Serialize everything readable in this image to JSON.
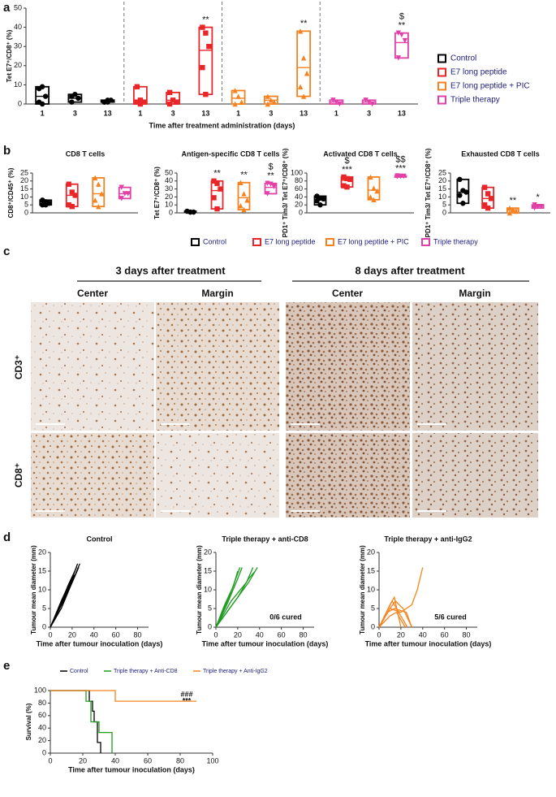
{
  "panel_labels": [
    "a",
    "b",
    "c",
    "d",
    "e"
  ],
  "legend_b": [
    {
      "name": "Control",
      "color": "#000000"
    },
    {
      "name": "E7 long peptide",
      "color": "#e8262a"
    },
    {
      "name": "E7 long peptide + PIC",
      "color": "#f58220"
    },
    {
      "name": "Triple therapy",
      "color": "#e040a8"
    }
  ],
  "histology": {
    "headers": [
      "3 days after treatment",
      "8 days after treatment"
    ],
    "columns": [
      "Center",
      "Margin",
      "Center",
      "Margin"
    ],
    "rows": [
      "CD3⁺",
      "CD8⁺"
    ]
  },
  "chart_data": [
    {
      "type": "box",
      "ylabel": "Tet E7⁺/CD8⁺ (%)",
      "xlabel": "Time after treatment administration (days)",
      "ylim": [
        0,
        50
      ],
      "yticks": [
        0,
        10,
        20,
        30,
        40,
        50
      ],
      "separators": true,
      "legend": "right",
      "series": [
        {
          "name": "Control",
          "color": "#000000",
          "marker": "circle",
          "categories": [
            "1",
            "3",
            "13"
          ],
          "boxes": [
            {
              "low": 0,
              "median": 4,
              "high": 9,
              "points": [
                8,
                9,
                4,
                1,
                0
              ]
            },
            {
              "low": 1,
              "median": 3,
              "high": 5,
              "points": [
                4,
                5,
                3,
                1
              ]
            },
            {
              "low": 1,
              "median": 1.5,
              "high": 2,
              "points": [
                1,
                2,
                2,
                1,
                1
              ]
            }
          ]
        },
        {
          "name": "E7 long peptide",
          "color": "#e8262a",
          "marker": "square",
          "categories": [
            "1",
            "3",
            "13"
          ],
          "boxes": [
            {
              "low": 0,
              "median": 2,
              "high": 9,
              "points": [
                9,
                2,
                1,
                1,
                0
              ]
            },
            {
              "low": 0,
              "median": 2,
              "high": 6,
              "points": [
                6,
                2,
                1,
                0
              ]
            },
            {
              "low": 5,
              "median": 28,
              "high": 40,
              "points": [
                40,
                37,
                30,
                19,
                5
              ],
              "labels": [
                "**"
              ]
            }
          ]
        },
        {
          "name": "E7 long peptide + PIC",
          "color": "#f58220",
          "marker": "triangle",
          "categories": [
            "1",
            "3",
            "13"
          ],
          "boxes": [
            {
              "low": 0,
              "median": 3,
              "high": 7,
              "points": [
                7,
                4,
                1,
                0
              ]
            },
            {
              "low": 0,
              "median": 2,
              "high": 4,
              "points": [
                4,
                2,
                1,
                0
              ]
            },
            {
              "low": 4,
              "median": 19,
              "high": 38,
              "points": [
                38,
                24,
                16,
                9,
                4
              ],
              "labels": [
                "**"
              ]
            }
          ]
        },
        {
          "name": "Triple therapy",
          "color": "#e040a8",
          "marker": "triangle-down",
          "categories": [
            "1",
            "3",
            "13"
          ],
          "boxes": [
            {
              "low": 0,
              "median": 1,
              "high": 2,
              "points": [
                2,
                1,
                0
              ]
            },
            {
              "low": 0,
              "median": 1,
              "high": 2,
              "points": [
                2,
                1,
                0
              ]
            },
            {
              "low": 24,
              "median": 32,
              "high": 37,
              "points": [
                37,
                36,
                33,
                24
              ],
              "labels": [
                "$",
                "**"
              ]
            }
          ]
        }
      ]
    },
    {
      "type": "box",
      "title": "CD8 T cells",
      "ylabel": "CD8⁺/CD45⁺ (%)",
      "ylim": [
        0,
        25
      ],
      "yticks": [
        0,
        5,
        10,
        15,
        20,
        25
      ],
      "series": [
        {
          "color": "#000000",
          "marker": "circle",
          "boxes": [
            {
              "low": 5,
              "median": 7,
              "high": 8,
              "points": [
                8,
                7,
                6,
                5,
                5
              ]
            }
          ]
        },
        {
          "color": "#e8262a",
          "marker": "square",
          "boxes": [
            {
              "low": 4,
              "median": 11,
              "high": 18,
              "points": [
                18,
                13,
                11,
                5,
                4
              ]
            }
          ]
        },
        {
          "color": "#f58220",
          "marker": "triangle",
          "boxes": [
            {
              "low": 4,
              "median": 12,
              "high": 22,
              "points": [
                22,
                18,
                12,
                8,
                4
              ]
            }
          ]
        },
        {
          "color": "#e040a8",
          "marker": "triangle-down",
          "boxes": [
            {
              "low": 9,
              "median": 12,
              "high": 16,
              "points": [
                16,
                12,
                12,
                9
              ]
            }
          ]
        }
      ]
    },
    {
      "type": "box",
      "title": "Antigen-specific CD8 T cells",
      "ylabel": "Tet E7⁺/CD8⁺ (%)",
      "ylim": [
        0,
        50
      ],
      "yticks": [
        0,
        10,
        20,
        30,
        40,
        50
      ],
      "series": [
        {
          "color": "#000000",
          "marker": "circle",
          "boxes": [
            {
              "low": 1,
              "median": 1.5,
              "high": 2,
              "points": [
                2,
                1,
                1,
                2,
                1
              ]
            }
          ]
        },
        {
          "color": "#e8262a",
          "marker": "square",
          "boxes": [
            {
              "low": 5,
              "median": 28,
              "high": 40,
              "points": [
                40,
                37,
                30,
                19,
                5
              ],
              "labels": [
                "**"
              ]
            }
          ]
        },
        {
          "color": "#f58220",
          "marker": "triangle",
          "boxes": [
            {
              "low": 4,
              "median": 19,
              "high": 38,
              "points": [
                38,
                24,
                16,
                9,
                4
              ],
              "labels": [
                "**"
              ]
            }
          ]
        },
        {
          "color": "#e040a8",
          "marker": "triangle-down",
          "boxes": [
            {
              "low": 24,
              "median": 32,
              "high": 37,
              "points": [
                37,
                36,
                33,
                24
              ],
              "labels": [
                "$",
                "**"
              ]
            }
          ]
        }
      ]
    },
    {
      "type": "box",
      "title": "Activated CD8 T cells",
      "ylabel": "PD1⁺ Tim3/ Tet E7⁺/CD8⁺ (%)",
      "ylim": [
        0,
        100
      ],
      "yticks": [
        0,
        20,
        40,
        60,
        80,
        100
      ],
      "series": [
        {
          "color": "#000000",
          "marker": "circle",
          "boxes": [
            {
              "low": 20,
              "median": 33,
              "high": 42,
              "points": [
                42,
                37,
                35,
                30,
                20
              ]
            }
          ]
        },
        {
          "color": "#e8262a",
          "marker": "square",
          "boxes": [
            {
              "low": 65,
              "median": 82,
              "high": 90,
              "points": [
                90,
                86,
                84,
                68,
                65
              ],
              "labels": [
                "$",
                "***"
              ]
            }
          ]
        },
        {
          "color": "#f58220",
          "marker": "triangle",
          "boxes": [
            {
              "low": 33,
              "median": 57,
              "high": 90,
              "points": [
                90,
                62,
                55,
                40,
                33
              ]
            }
          ]
        },
        {
          "color": "#e040a8",
          "marker": "triangle-down",
          "boxes": [
            {
              "low": 90,
              "median": 92,
              "high": 93,
              "points": [
                93,
                92,
                92,
                91
              ],
              "labels": [
                "$$",
                "***"
              ]
            }
          ]
        }
      ]
    },
    {
      "type": "box",
      "title": "Exhausted CD8 T cells",
      "ylabel": "PD1⁺ Tim3/ Tet E7⁺/CD8⁺ (%)",
      "ylim": [
        0,
        25
      ],
      "yticks": [
        0,
        5,
        10,
        15,
        20,
        25
      ],
      "series": [
        {
          "color": "#000000",
          "marker": "circle",
          "boxes": [
            {
              "low": 6,
              "median": 13,
              "high": 21,
              "points": [
                21,
                14,
                13,
                11,
                6
              ]
            }
          ]
        },
        {
          "color": "#e8262a",
          "marker": "square",
          "boxes": [
            {
              "low": 3,
              "median": 9,
              "high": 16,
              "points": [
                16,
                12,
                9,
                5,
                3
              ]
            }
          ]
        },
        {
          "color": "#f58220",
          "marker": "triangle",
          "boxes": [
            {
              "low": 0,
              "median": 2,
              "high": 3,
              "points": [
                3,
                2,
                1,
                0
              ],
              "labels": [
                "**"
              ]
            }
          ]
        },
        {
          "color": "#e040a8",
          "marker": "triangle-down",
          "boxes": [
            {
              "low": 3,
              "median": 4,
              "high": 5,
              "points": [
                5,
                4,
                4,
                3
              ],
              "labels": [
                "*"
              ]
            }
          ]
        }
      ]
    },
    {
      "type": "line",
      "title": "Control",
      "ylabel": "Tumour mean diameter (mm)",
      "xlabel": "Time after tumour inoculation (days)",
      "xlim": [
        0,
        90
      ],
      "xticks": [
        0,
        20,
        40,
        60,
        80
      ],
      "ylim": [
        0,
        20
      ],
      "yticks": [
        0,
        5,
        10,
        15,
        20
      ],
      "series": [
        {
          "color": "#000000",
          "x": [
            0,
            10,
            20,
            25
          ],
          "values": [
            0,
            6,
            13,
            17
          ]
        },
        {
          "color": "#000000",
          "x": [
            0,
            10,
            20,
            27
          ],
          "values": [
            0,
            5,
            12,
            17
          ]
        },
        {
          "color": "#000000",
          "x": [
            0,
            8,
            16,
            24
          ],
          "values": [
            0,
            5,
            11,
            16
          ]
        },
        {
          "color": "#000000",
          "x": [
            0,
            10,
            18,
            22
          ],
          "values": [
            0,
            6,
            11,
            14
          ]
        },
        {
          "color": "#000000",
          "x": [
            0,
            12,
            20,
            26
          ],
          "values": [
            0,
            7,
            12,
            16
          ]
        },
        {
          "color": "#000000",
          "x": [
            0,
            10,
            21
          ],
          "values": [
            0,
            7,
            14
          ]
        }
      ]
    },
    {
      "type": "line",
      "title": "Triple therapy + anti-CD8",
      "ylabel": "Tumour mean diameter (mm)",
      "xlabel": "Time after tumour inoculation (days)",
      "xlim": [
        0,
        90
      ],
      "xticks": [
        0,
        20,
        40,
        60,
        80
      ],
      "ylim": [
        0,
        20
      ],
      "yticks": [
        0,
        5,
        10,
        15,
        20
      ],
      "annotations": [
        "0/6 cured"
      ],
      "series": [
        {
          "color": "#1f9a1f",
          "x": [
            0,
            10,
            20,
            24
          ],
          "values": [
            0,
            6,
            13,
            16
          ]
        },
        {
          "color": "#1f9a1f",
          "x": [
            0,
            12,
            22
          ],
          "values": [
            0,
            8,
            16
          ]
        },
        {
          "color": "#1f9a1f",
          "x": [
            0,
            15,
            30,
            38
          ],
          "values": [
            0,
            6,
            12,
            16
          ]
        },
        {
          "color": "#1f9a1f",
          "x": [
            0,
            10,
            20,
            30,
            36
          ],
          "values": [
            0,
            4,
            8,
            13,
            15
          ]
        },
        {
          "color": "#1f9a1f",
          "x": [
            0,
            8,
            16,
            20
          ],
          "values": [
            0,
            6,
            11,
            15
          ]
        },
        {
          "color": "#1f9a1f",
          "x": [
            0,
            14,
            28,
            34
          ],
          "values": [
            0,
            7,
            12,
            16
          ]
        }
      ]
    },
    {
      "type": "line",
      "title": "Triple therapy + anti-IgG2",
      "ylabel": "Tumour mean diameter (mm)",
      "xlabel": "Time after tumour inoculation (days)",
      "xlim": [
        0,
        90
      ],
      "xticks": [
        0,
        20,
        40,
        60,
        80
      ],
      "ylim": [
        0,
        20
      ],
      "yticks": [
        0,
        5,
        10,
        15,
        20
      ],
      "annotations": [
        "5/6 cured"
      ],
      "series": [
        {
          "color": "#f7841e",
          "x": [
            0,
            10,
            15,
            22,
            30
          ],
          "values": [
            0,
            5,
            7,
            5,
            0
          ]
        },
        {
          "color": "#f7841e",
          "x": [
            0,
            10,
            14,
            20
          ],
          "values": [
            0,
            6,
            8,
            0
          ]
        },
        {
          "color": "#f7841e",
          "x": [
            0,
            8,
            14,
            25,
            30
          ],
          "values": [
            0,
            4,
            5,
            4,
            0
          ]
        },
        {
          "color": "#f7841e",
          "x": [
            0,
            10,
            16,
            24
          ],
          "values": [
            0,
            3,
            4,
            0
          ]
        },
        {
          "color": "#f7841e",
          "x": [
            0,
            12,
            20,
            26
          ],
          "values": [
            0,
            7,
            3,
            0
          ]
        },
        {
          "color": "#f7841e",
          "x": [
            0,
            10,
            20,
            30,
            35,
            40
          ],
          "values": [
            0,
            5,
            4,
            6,
            10,
            16
          ]
        }
      ]
    },
    {
      "type": "line",
      "ylabel": "Survival (%)",
      "xlabel": "Time after tumour inoculation (days)",
      "xlim": [
        0,
        100
      ],
      "xticks": [
        0,
        20,
        40,
        60,
        80,
        100
      ],
      "ylim": [
        0,
        100
      ],
      "yticks": [
        0,
        20,
        40,
        60,
        80,
        100
      ],
      "legend": "top",
      "annotations": [
        "###",
        "***"
      ],
      "series": [
        {
          "name": "Control",
          "color": "#000000",
          "x": [
            0,
            24,
            24,
            26,
            26,
            27,
            27,
            29,
            29,
            31,
            31
          ],
          "values": [
            100,
            100,
            83,
            83,
            67,
            67,
            50,
            50,
            17,
            17,
            0
          ]
        },
        {
          "name": "Triple therapy + Anti-CD8",
          "color": "#1f9a1f",
          "x": [
            0,
            22,
            22,
            25,
            25,
            30,
            30,
            38,
            38
          ],
          "values": [
            100,
            100,
            83,
            83,
            50,
            50,
            33,
            33,
            0
          ]
        },
        {
          "name": "Triple therapy + Anti-IgG2",
          "color": "#f7841e",
          "x": [
            0,
            40,
            40,
            90
          ],
          "values": [
            100,
            100,
            83,
            83
          ]
        }
      ]
    }
  ]
}
